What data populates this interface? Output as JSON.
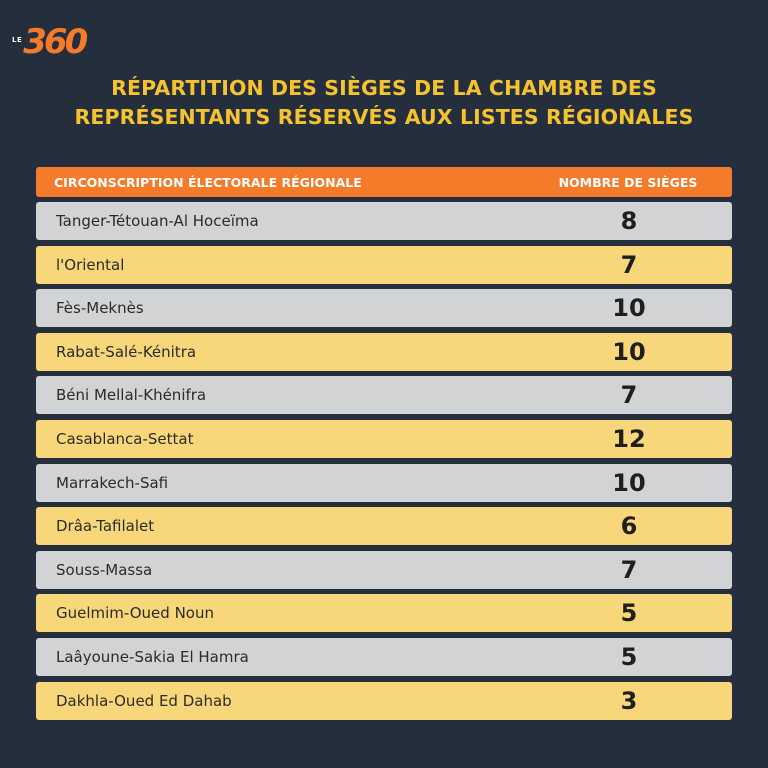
{
  "logo": {
    "prefix": "LE",
    "number": "360"
  },
  "title": {
    "line1": "RÉPARTITION DES SIÈGES DE LA CHAMBRE DES",
    "line2": "REPRÉSENTANTS RÉSERVÉS AUX LISTES RÉGIONALES"
  },
  "table": {
    "headers": {
      "region": "CIRCONSCRIPTION ÉLECTORALE RÉGIONALE",
      "seats": "NOMBRE DE SIÈGES"
    },
    "rows": [
      {
        "region": "Tanger-Tétouan-Al Hoceïma",
        "seats": "8"
      },
      {
        "region": "l'Oriental",
        "seats": "7"
      },
      {
        "region": "Fès-Meknès",
        "seats": "10"
      },
      {
        "region": "Rabat-Salé-Kénitra",
        "seats": "10"
      },
      {
        "region": "Béni Mellal-Khénifra",
        "seats": "7"
      },
      {
        "region": "Casablanca-Settat",
        "seats": "12"
      },
      {
        "region": "Marrakech-Safi",
        "seats": "10"
      },
      {
        "region": "Drâa-Tafilalet",
        "seats": "6"
      },
      {
        "region": "Souss-Massa",
        "seats": "7"
      },
      {
        "region": "Guelmim-Oued Noun",
        "seats": "5"
      },
      {
        "region": "Laâyoune-Sakia El Hamra",
        "seats": "5"
      },
      {
        "region": "Dakhla-Oued Ed Dahab",
        "seats": "3"
      }
    ]
  },
  "colors": {
    "background": "#252e3d",
    "title": "#f5c330",
    "header": "#f47b2a",
    "row_gray": "#d2d3d5",
    "row_yellow": "#f8d77b"
  }
}
